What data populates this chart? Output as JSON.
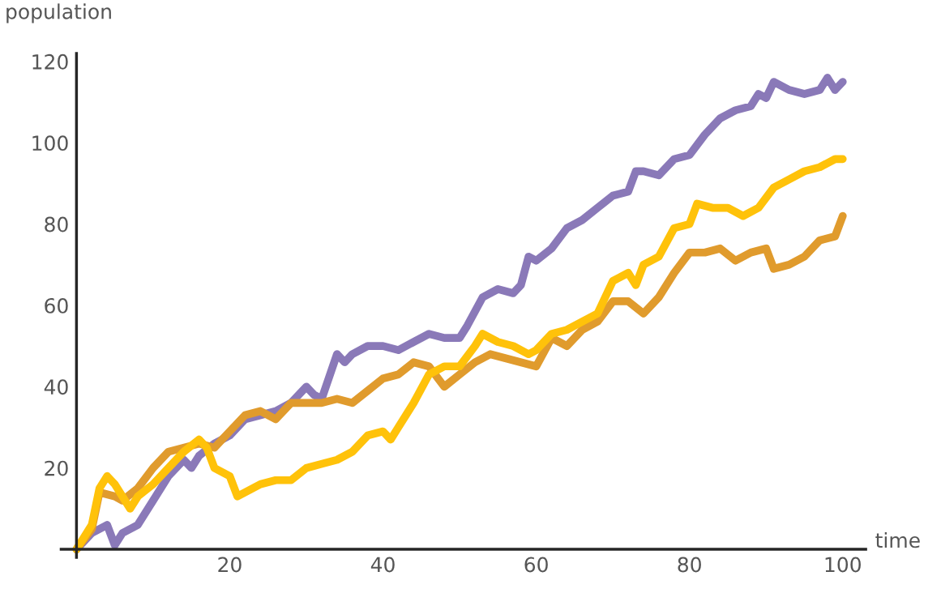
{
  "chart_data": {
    "type": "line",
    "xlabel": "time",
    "ylabel": "population",
    "xlim": [
      -2,
      103
    ],
    "ylim": [
      -2,
      122
    ],
    "xticks": [
      20,
      40,
      60,
      80,
      100
    ],
    "yticks": [
      20,
      40,
      60,
      80,
      100,
      120
    ],
    "grid": false,
    "legend": false,
    "marker": "none",
    "line_style": "solid",
    "series": [
      {
        "color": "#8a79b8",
        "x": [
          0,
          2,
          4,
          5,
          6,
          8,
          10,
          12,
          14,
          15,
          16,
          18,
          20,
          22,
          24,
          26,
          28,
          30,
          31,
          32,
          34,
          35,
          36,
          38,
          40,
          42,
          44,
          46,
          48,
          50,
          51,
          53,
          55,
          57,
          58,
          59,
          60,
          62,
          64,
          66,
          68,
          70,
          72,
          73,
          74,
          76,
          78,
          80,
          82,
          84,
          86,
          88,
          89,
          90,
          91,
          93,
          95,
          97,
          98,
          99,
          100
        ],
        "values": [
          0,
          4,
          6,
          1,
          4,
          6,
          12,
          18,
          22,
          20,
          23,
          26,
          28,
          32,
          33,
          34,
          36,
          40,
          38,
          37,
          48,
          46,
          48,
          50,
          50,
          49,
          51,
          53,
          52,
          52,
          55,
          62,
          64,
          63,
          65,
          72,
          71,
          74,
          79,
          81,
          84,
          87,
          88,
          93,
          93,
          92,
          96,
          97,
          102,
          106,
          108,
          109,
          112,
          111,
          115,
          113,
          112,
          113,
          116,
          113,
          115
        ]
      },
      {
        "color": "#e09b2d",
        "x": [
          0,
          2,
          3,
          5,
          6,
          8,
          10,
          12,
          14,
          16,
          18,
          20,
          22,
          24,
          26,
          28,
          30,
          32,
          34,
          36,
          38,
          40,
          42,
          44,
          46,
          48,
          50,
          52,
          54,
          56,
          58,
          60,
          62,
          64,
          66,
          68,
          70,
          72,
          74,
          76,
          78,
          80,
          82,
          84,
          86,
          88,
          90,
          91,
          93,
          95,
          97,
          99,
          100
        ],
        "values": [
          0,
          5,
          14,
          13,
          12,
          15,
          20,
          24,
          25,
          26,
          25,
          29,
          33,
          34,
          32,
          36,
          36,
          36,
          37,
          36,
          39,
          42,
          43,
          46,
          45,
          40,
          43,
          46,
          48,
          47,
          46,
          45,
          52,
          50,
          54,
          56,
          61,
          61,
          58,
          62,
          68,
          73,
          73,
          74,
          71,
          73,
          74,
          69,
          70,
          72,
          76,
          77,
          82
        ]
      },
      {
        "color": "#ffc20a",
        "x": [
          0,
          2,
          3,
          4,
          5,
          6,
          7,
          8,
          10,
          12,
          14,
          16,
          17,
          18,
          20,
          21,
          22,
          24,
          26,
          28,
          30,
          32,
          34,
          36,
          38,
          40,
          41,
          42,
          44,
          46,
          48,
          50,
          52,
          53,
          55,
          57,
          59,
          60,
          62,
          64,
          66,
          68,
          70,
          72,
          73,
          74,
          76,
          78,
          80,
          81,
          83,
          85,
          87,
          89,
          91,
          93,
          95,
          97,
          99,
          100
        ],
        "values": [
          0,
          6,
          15,
          18,
          16,
          13,
          10,
          13,
          16,
          20,
          24,
          27,
          25,
          20,
          18,
          13,
          14,
          16,
          17,
          17,
          20,
          21,
          22,
          24,
          28,
          29,
          27,
          30,
          36,
          43,
          45,
          45,
          50,
          53,
          51,
          50,
          48,
          49,
          53,
          54,
          56,
          58,
          66,
          68,
          65,
          70,
          72,
          79,
          80,
          85,
          84,
          84,
          82,
          84,
          89,
          91,
          93,
          94,
          96,
          96
        ]
      }
    ]
  }
}
